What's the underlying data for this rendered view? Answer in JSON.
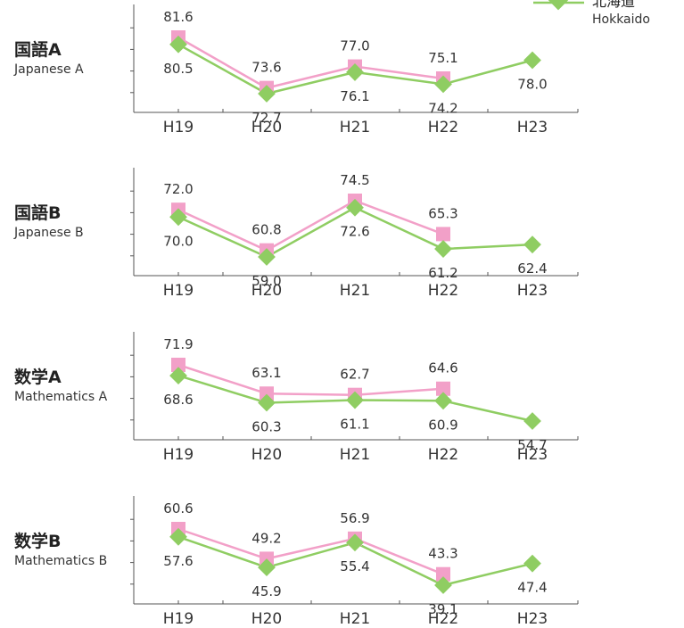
{
  "legend": {
    "items": [
      {
        "label": "北海道",
        "sublabel": "Hokkaido",
        "color": "#8fcd62",
        "marker": "diamond"
      }
    ]
  },
  "colors": {
    "national": "#f2a0c8",
    "hokkaido": "#8fcd62"
  },
  "chart_data": [
    {
      "type": "line",
      "subject": "国語A",
      "subject_en": "Japanese A",
      "categories": [
        "H19",
        "H20",
        "H21",
        "H22",
        "H23"
      ],
      "series": [
        {
          "values": [
            81.6,
            73.6,
            77.0,
            75.1,
            null
          ]
        },
        {
          "name": "北海道",
          "values": [
            80.5,
            72.7,
            76.1,
            74.2,
            78.0
          ]
        }
      ],
      "labels": [
        [
          "81.6",
          "73.6",
          "77.0",
          "75.1",
          ""
        ],
        [
          "80.5",
          "72.7",
          "76.1",
          "74.2",
          "78.0"
        ]
      ]
    },
    {
      "type": "line",
      "subject": "国語B",
      "subject_en": "Japanese B",
      "categories": [
        "H19",
        "H20",
        "H21",
        "H22",
        "H23"
      ],
      "series": [
        {
          "values": [
            72.0,
            60.8,
            74.5,
            65.3,
            null
          ]
        },
        {
          "name": "北海道",
          "values": [
            70.0,
            59.0,
            72.6,
            61.2,
            62.4
          ]
        }
      ],
      "labels": [
        [
          "72.0",
          "60.8",
          "74.5",
          "65.3",
          ""
        ],
        [
          "70.0",
          "59.0",
          "72.6",
          "61.2",
          "62.4"
        ]
      ]
    },
    {
      "type": "line",
      "subject": "数学A",
      "subject_en": "Mathematics A",
      "categories": [
        "H19",
        "H20",
        "H21",
        "H22",
        "H23"
      ],
      "series": [
        {
          "values": [
            71.9,
            63.1,
            62.7,
            64.6,
            null
          ]
        },
        {
          "name": "北海道",
          "values": [
            68.6,
            60.3,
            61.1,
            60.9,
            54.7
          ]
        }
      ],
      "labels": [
        [
          "71.9",
          "63.1",
          "62.7",
          "64.6",
          ""
        ],
        [
          "68.6",
          "60.3",
          "61.1",
          "60.9",
          "54.7"
        ]
      ]
    },
    {
      "type": "line",
      "subject": "数学B",
      "subject_en": "Mathematics B",
      "categories": [
        "H19",
        "H20",
        "H21",
        "H22",
        "H23"
      ],
      "series": [
        {
          "values": [
            60.6,
            49.2,
            56.9,
            43.3,
            null
          ]
        },
        {
          "name": "北海道",
          "values": [
            57.6,
            45.9,
            55.4,
            39.1,
            47.4
          ]
        }
      ],
      "labels": [
        [
          "60.6",
          "49.2",
          "56.9",
          "43.3",
          ""
        ],
        [
          "57.6",
          "45.9",
          "55.4",
          "39.1",
          "47.4"
        ]
      ]
    }
  ]
}
